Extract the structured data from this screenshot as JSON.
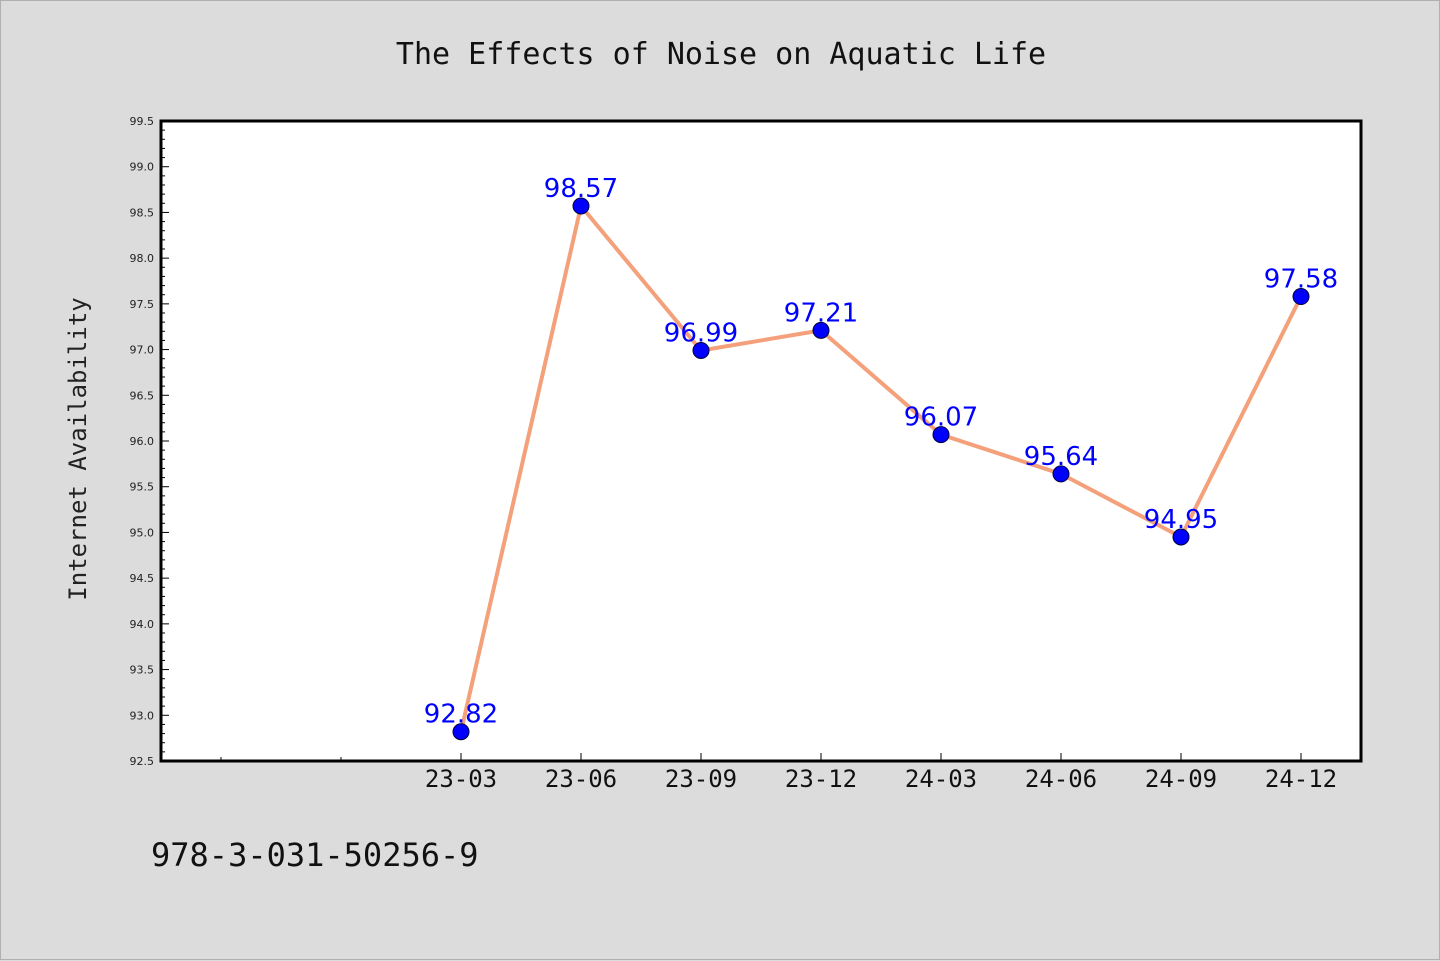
{
  "chart_data": {
    "type": "line",
    "title": "The Effects of Noise on Aquatic Life",
    "xlabel": "",
    "ylabel": "Internet Availability",
    "categories": [
      "23-03",
      "23-06",
      "23-09",
      "23-12",
      "24-03",
      "24-06",
      "24-09",
      "24-12"
    ],
    "series": [
      {
        "values": [
          92.82,
          98.57,
          96.99,
          97.21,
          96.07,
          95.64,
          94.95,
          97.58
        ]
      }
    ],
    "data_labels": [
      "92.82",
      "98.57",
      "96.99",
      "97.21",
      "96.07",
      "95.64",
      "94.95",
      "97.58"
    ],
    "ylim": [
      92.5,
      99.5
    ],
    "yticks": [
      "92.5",
      "93.0",
      "93.5",
      "94.0",
      "94.5",
      "95.0",
      "95.5",
      "96.0",
      "96.5",
      "97.0",
      "97.5",
      "98.0",
      "98.5",
      "99.0",
      "99.5"
    ],
    "grid": false,
    "legend": "none",
    "colors": {
      "line": "#f4a07a",
      "marker": "#0000ff",
      "data_label": "#0000ff",
      "background": "#dcdcdc",
      "plot_background": "#ffffff"
    }
  },
  "footer": {
    "isbn": "978-3-031-50256-9"
  }
}
